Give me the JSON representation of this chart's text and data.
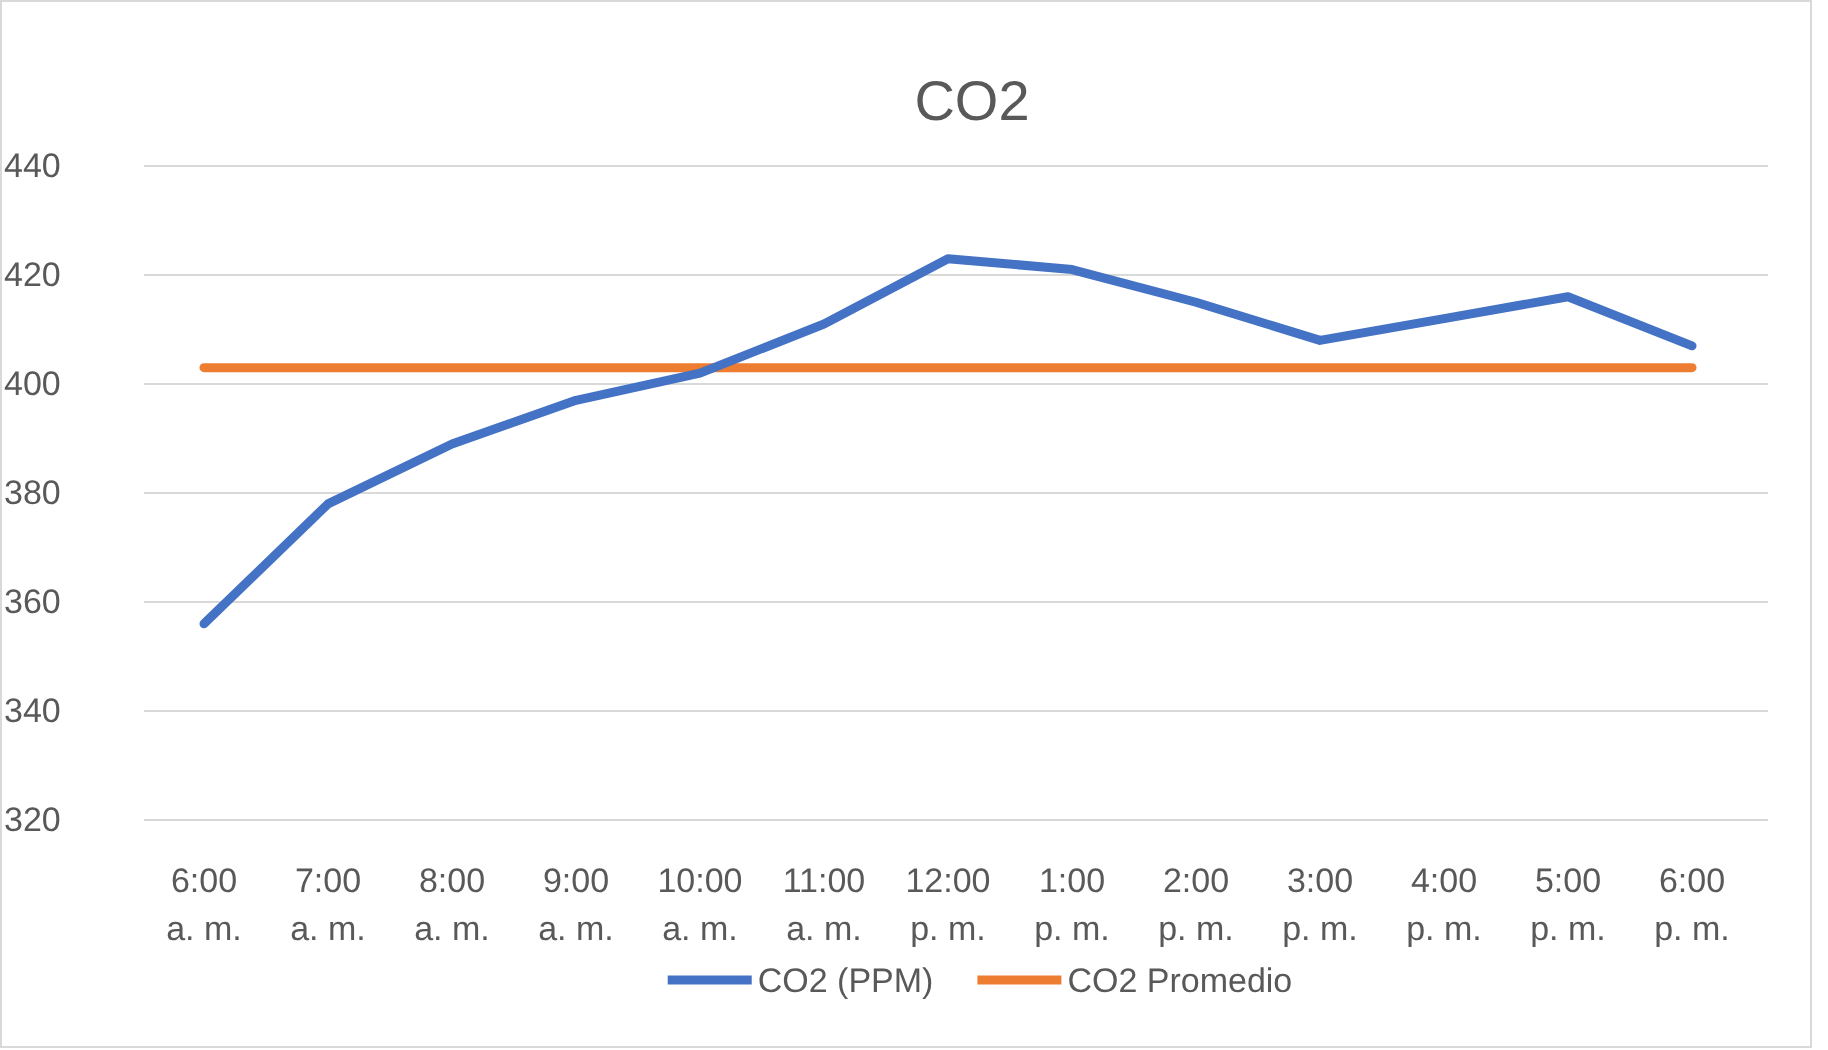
{
  "chart_data": {
    "type": "line",
    "title": "CO2",
    "categories": [
      "6:00 a. m.",
      "7:00 a. m.",
      "8:00 a. m.",
      "9:00 a. m.",
      "10:00 a. m.",
      "11:00 a. m.",
      "12:00 p. m.",
      "1:00 p. m.",
      "2:00 p. m.",
      "3:00 p. m.",
      "4:00 p. m.",
      "5:00 p. m.",
      "6:00 p. m."
    ],
    "series": [
      {
        "name": "CO2 (PPM)",
        "color": "#4472c4",
        "values": [
          356,
          378,
          389,
          397,
          402,
          411,
          423,
          421,
          415,
          408,
          412,
          416,
          407
        ]
      },
      {
        "name": "CO2 Promedio",
        "color": "#ed7d31",
        "values": [
          403,
          403,
          403,
          403,
          403,
          403,
          403,
          403,
          403,
          403,
          403,
          403,
          403
        ]
      }
    ],
    "ylim": [
      320,
      440
    ],
    "yticks": [
      320,
      340,
      360,
      380,
      400,
      420,
      440
    ],
    "grid": "y",
    "legend": "bottom",
    "marker": "none",
    "line_style": "solid"
  }
}
